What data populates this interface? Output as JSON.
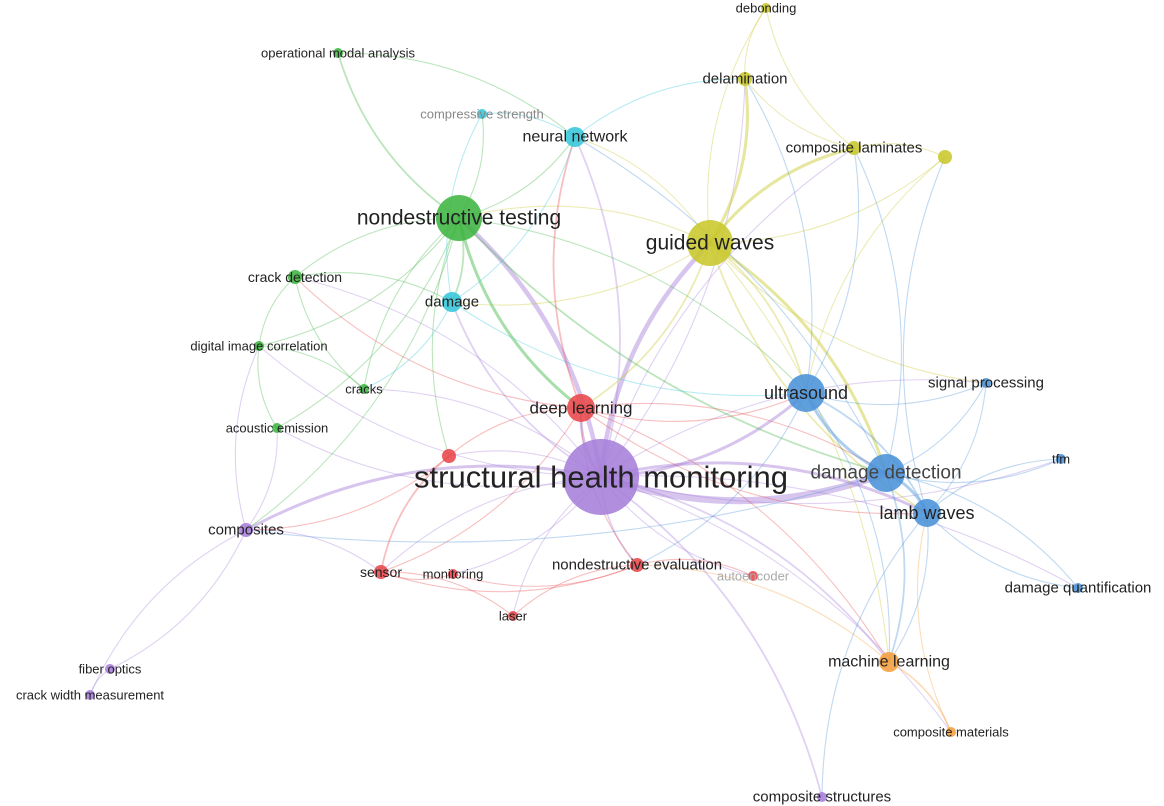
{
  "diagram": {
    "type": "keyword-co-occurrence-network",
    "clusters": {
      "red": "#e8474a",
      "green": "#3fb541",
      "blue": "#4a92d8",
      "yellow": "#c8c72b",
      "purple": "#a67ed9",
      "cyan": "#36c6d9",
      "orange": "#f59e3c"
    },
    "nodes": [
      {
        "id": "shm",
        "label": "structural health monitoring",
        "cluster": "purple",
        "weight": 10
      },
      {
        "id": "ndt",
        "label": "nondestructive testing",
        "cluster": "green",
        "weight": 6
      },
      {
        "id": "gw",
        "label": "guided waves",
        "cluster": "yellow",
        "weight": 6
      },
      {
        "id": "dd",
        "label": "damage detection",
        "cluster": "blue",
        "weight": 5
      },
      {
        "id": "us",
        "label": "ultrasound",
        "cluster": "blue",
        "weight": 5
      },
      {
        "id": "lw",
        "label": "lamb waves",
        "cluster": "blue",
        "weight": 4
      },
      {
        "id": "dl",
        "label": "deep learning",
        "cluster": "red",
        "weight": 4
      },
      {
        "id": "nn",
        "label": "neural network",
        "cluster": "cyan",
        "weight": 3
      },
      {
        "id": "dam",
        "label": "damage",
        "cluster": "cyan",
        "weight": 3
      },
      {
        "id": "cs",
        "label": "compressive strength",
        "cluster": "cyan",
        "weight": 1
      },
      {
        "id": "del",
        "label": "delamination",
        "cluster": "yellow",
        "weight": 2
      },
      {
        "id": "deb",
        "label": "debonding",
        "cluster": "yellow",
        "weight": 1
      },
      {
        "id": "cl",
        "label": "composite laminates",
        "cluster": "yellow",
        "weight": 2
      },
      {
        "id": "yx",
        "label": "",
        "cluster": "yellow",
        "weight": 2
      },
      {
        "id": "oma",
        "label": "operational modal analysis",
        "cluster": "green",
        "weight": 1
      },
      {
        "id": "cd",
        "label": "crack detection",
        "cluster": "green",
        "weight": 2
      },
      {
        "id": "dic",
        "label": "digital image correlation",
        "cluster": "green",
        "weight": 1
      },
      {
        "id": "cr",
        "label": "cracks",
        "cluster": "green",
        "weight": 1
      },
      {
        "id": "ae",
        "label": "acoustic emission",
        "cluster": "green",
        "weight": 1
      },
      {
        "id": "rx",
        "label": "",
        "cluster": "red",
        "weight": 2
      },
      {
        "id": "comp",
        "label": "composites",
        "cluster": "purple",
        "weight": 2
      },
      {
        "id": "sen",
        "label": "sensor",
        "cluster": "red",
        "weight": 2
      },
      {
        "id": "mon",
        "label": "monitoring",
        "cluster": "red",
        "weight": 1
      },
      {
        "id": "las",
        "label": "laser",
        "cluster": "red",
        "weight": 1
      },
      {
        "id": "nde",
        "label": "nondestructive evaluation",
        "cluster": "red",
        "weight": 2
      },
      {
        "id": "ae2",
        "label": "autoencoder",
        "cluster": "red",
        "weight": 1
      },
      {
        "id": "sp",
        "label": "signal processing",
        "cluster": "blue",
        "weight": 1
      },
      {
        "id": "tfm",
        "label": "tfm",
        "cluster": "blue",
        "weight": 1
      },
      {
        "id": "dq",
        "label": "damage quantification",
        "cluster": "blue",
        "weight": 1
      },
      {
        "id": "ml",
        "label": "machine learning",
        "cluster": "orange",
        "weight": 3
      },
      {
        "id": "cm",
        "label": "composite materials",
        "cluster": "orange",
        "weight": 1
      },
      {
        "id": "fo",
        "label": "fiber optics",
        "cluster": "purple",
        "weight": 1
      },
      {
        "id": "cwm",
        "label": "crack width measurement",
        "cluster": "purple",
        "weight": 1
      },
      {
        "id": "cst",
        "label": "composite structures",
        "cluster": "purple",
        "weight": 1
      }
    ],
    "edges": [
      [
        "shm",
        "dd",
        6
      ],
      [
        "shm",
        "gw",
        4
      ],
      [
        "shm",
        "ndt",
        4
      ],
      [
        "shm",
        "dl",
        3
      ],
      [
        "shm",
        "us",
        3
      ],
      [
        "shm",
        "lw",
        3
      ],
      [
        "shm",
        "comp",
        3
      ],
      [
        "shm",
        "cst",
        2
      ],
      [
        "shm",
        "nde",
        2
      ],
      [
        "shm",
        "ml",
        2
      ],
      [
        "shm",
        "nn",
        2
      ],
      [
        "shm",
        "dam",
        2
      ],
      [
        "shm",
        "sen",
        1
      ],
      [
        "shm",
        "cl",
        1
      ],
      [
        "shm",
        "del",
        1
      ],
      [
        "shm",
        "sp",
        1
      ],
      [
        "shm",
        "tfm",
        1
      ],
      [
        "shm",
        "dq",
        1
      ],
      [
        "shm",
        "cr",
        1
      ],
      [
        "shm",
        "ae",
        1
      ],
      [
        "shm",
        "cd",
        1
      ],
      [
        "shm",
        "dic",
        1
      ],
      [
        "shm",
        "las",
        1
      ],
      [
        "shm",
        "mon",
        1
      ],
      [
        "shm",
        "ae2",
        1
      ],
      [
        "shm",
        "cm",
        1
      ],
      [
        "shm",
        "rx",
        1
      ],
      [
        "gw",
        "cl",
        3
      ],
      [
        "gw",
        "del",
        3
      ],
      [
        "gw",
        "dd",
        3
      ],
      [
        "gw",
        "lw",
        2
      ],
      [
        "gw",
        "us",
        2
      ],
      [
        "gw",
        "yx",
        1
      ],
      [
        "gw",
        "dl",
        2
      ],
      [
        "gw",
        "ndt",
        1
      ],
      [
        "gw",
        "dam",
        1
      ],
      [
        "gw",
        "sp",
        1
      ],
      [
        "gw",
        "ml",
        1
      ],
      [
        "gw",
        "nn",
        1
      ],
      [
        "gw",
        "deb",
        1
      ],
      [
        "ndt",
        "dl",
        3
      ],
      [
        "ndt",
        "oma",
        2
      ],
      [
        "ndt",
        "nn",
        1
      ],
      [
        "ndt",
        "dam",
        2
      ],
      [
        "ndt",
        "cd",
        1
      ],
      [
        "ndt",
        "dic",
        1
      ],
      [
        "ndt",
        "cr",
        1
      ],
      [
        "ndt",
        "ae",
        1
      ],
      [
        "ndt",
        "dd",
        2
      ],
      [
        "ndt",
        "us",
        1
      ],
      [
        "ndt",
        "rx",
        1
      ],
      [
        "ndt",
        "comp",
        1
      ],
      [
        "ndt",
        "cs",
        1
      ],
      [
        "dl",
        "nn",
        2
      ],
      [
        "dl",
        "us",
        1
      ],
      [
        "dl",
        "dd",
        1
      ],
      [
        "dl",
        "nde",
        1
      ],
      [
        "dl",
        "sen",
        1
      ],
      [
        "dl",
        "rx",
        1
      ],
      [
        "dl",
        "cd",
        1
      ],
      [
        "dl",
        "lw",
        1
      ],
      [
        "dl",
        "ml",
        1
      ],
      [
        "us",
        "dd",
        3
      ],
      [
        "us",
        "lw",
        2
      ],
      [
        "us",
        "sp",
        1
      ],
      [
        "us",
        "nde",
        1
      ],
      [
        "us",
        "del",
        1
      ],
      [
        "us",
        "ml",
        1
      ],
      [
        "us",
        "cl",
        1
      ],
      [
        "dd",
        "lw",
        3
      ],
      [
        "dd",
        "tfm",
        1
      ],
      [
        "dd",
        "dq",
        1
      ],
      [
        "dd",
        "sp",
        1
      ],
      [
        "dd",
        "ml",
        2
      ],
      [
        "dd",
        "nn",
        1
      ],
      [
        "dd",
        "comp",
        1
      ],
      [
        "dd",
        "cl",
        1
      ],
      [
        "lw",
        "tfm",
        1
      ],
      [
        "lw",
        "dq",
        1
      ],
      [
        "lw",
        "ml",
        1
      ],
      [
        "lw",
        "cst",
        1
      ],
      [
        "lw",
        "yx",
        1
      ],
      [
        "lw",
        "sp",
        1
      ],
      [
        "ml",
        "cm",
        2
      ],
      [
        "ml",
        "nde",
        1
      ],
      [
        "comp",
        "fo",
        1
      ],
      [
        "comp",
        "cwm",
        1
      ],
      [
        "comp",
        "dic",
        1
      ],
      [
        "comp",
        "ae",
        1
      ],
      [
        "comp",
        "sen",
        1
      ],
      [
        "sen",
        "mon",
        1
      ],
      [
        "sen",
        "las",
        1
      ],
      [
        "sen",
        "nde",
        1
      ],
      [
        "sen",
        "rx",
        2
      ],
      [
        "mon",
        "nde",
        1
      ],
      [
        "nde",
        "ae2",
        1
      ],
      [
        "nde",
        "las",
        1
      ],
      [
        "nn",
        "dam",
        1
      ],
      [
        "nn",
        "cs",
        1
      ],
      [
        "nn",
        "del",
        1
      ],
      [
        "cd",
        "dic",
        1
      ],
      [
        "cd",
        "dam",
        1
      ],
      [
        "cd",
        "cr",
        1
      ],
      [
        "dic",
        "cr",
        1
      ],
      [
        "dic",
        "ae",
        1
      ],
      [
        "del",
        "deb",
        1
      ],
      [
        "del",
        "cl",
        1
      ],
      [
        "cl",
        "yx",
        1
      ],
      [
        "deb",
        "cl",
        1
      ],
      [
        "dam",
        "cr",
        1
      ],
      [
        "dam",
        "us",
        1
      ],
      [
        "rx",
        "comp",
        1
      ],
      [
        "fo",
        "cwm",
        1
      ],
      [
        "oma",
        "nn",
        1
      ],
      [
        "cs",
        "dam",
        1
      ],
      [
        "cm",
        "lw",
        1
      ],
      [
        "yx",
        "us",
        1
      ]
    ]
  }
}
